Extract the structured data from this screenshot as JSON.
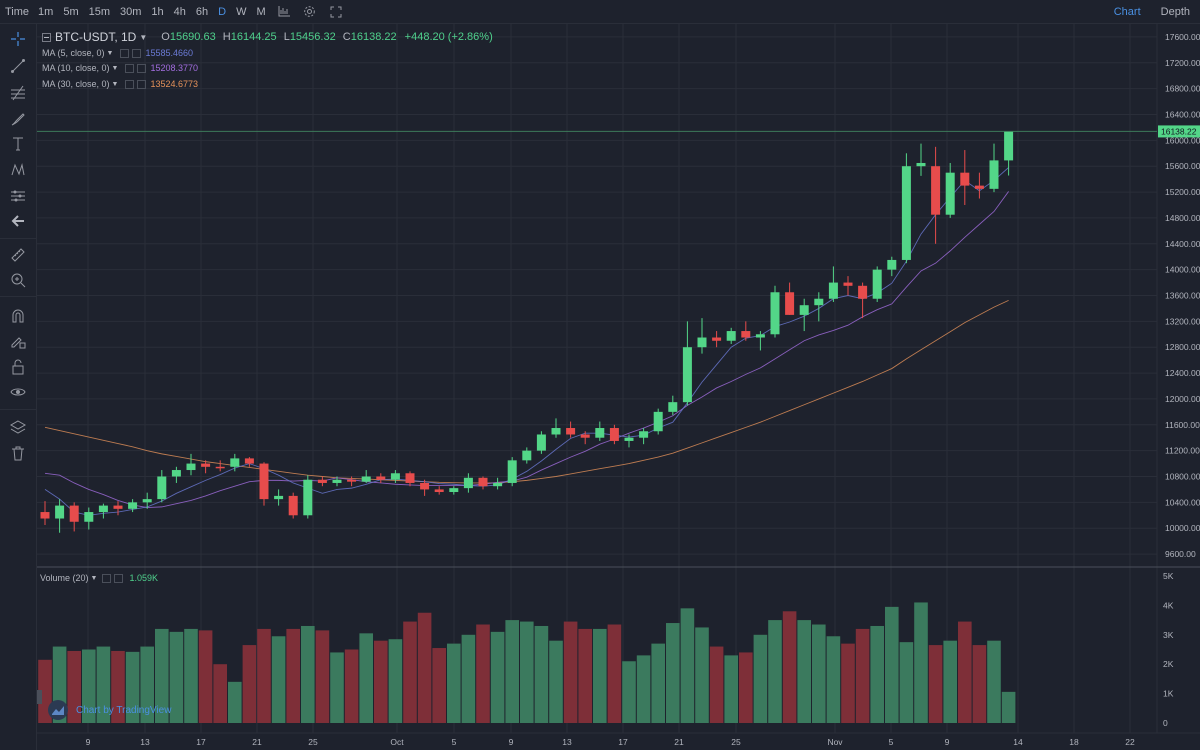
{
  "topbar": {
    "time_label": "Time",
    "intervals": [
      "1m",
      "5m",
      "15m",
      "30m",
      "1h",
      "4h",
      "6h",
      "D",
      "W",
      "M"
    ],
    "active_interval": "D",
    "tabs": [
      "Chart",
      "Depth"
    ],
    "active_tab": "Chart"
  },
  "toolbar_icons": [
    "crosshair-icon",
    "trend-line-icon",
    "fib-icon",
    "brush-icon",
    "text-icon",
    "pattern-icon",
    "prediction-icon",
    "back-arrow-icon",
    "ruler-icon",
    "zoom-icon",
    "magnet-icon",
    "lock-drawing-icon",
    "unlock-icon",
    "eye-icon",
    "layers-icon",
    "trash-icon"
  ],
  "legend": {
    "symbol": "BTC-USDT, 1D",
    "open_label": "O",
    "open": "15690.63",
    "high_label": "H",
    "high": "16144.25",
    "low_label": "L",
    "low": "15456.32",
    "close_label": "C",
    "close": "16138.22",
    "change": "+448.20 (+2.86%)",
    "mas": [
      {
        "label": "MA (5, close, 0)",
        "value": "15585.4660",
        "color": "#6b7bd6"
      },
      {
        "label": "MA (10, close, 0)",
        "value": "15208.3770",
        "color": "#a36ee0"
      },
      {
        "label": "MA (30, close, 0)",
        "value": "13524.6773",
        "color": "#e5925a"
      }
    ]
  },
  "volume_legend": {
    "label": "Volume (20)",
    "value": "1.059K"
  },
  "watermark": "Chart by TradingView",
  "colors": {
    "up": "#53d688",
    "down": "#e74c4c",
    "vol_up": "#3b7a5e",
    "vol_down": "#7e2f38",
    "bg": "#1e222d",
    "grid": "#2a2e39",
    "last_price": "#53d688"
  },
  "chart_data": {
    "type": "candlestick",
    "price_axis": {
      "ticks": [
        "17600.00",
        "17200.00",
        "16800.00",
        "16400.00",
        "16000.00",
        "15600.00",
        "15200.00",
        "14800.00",
        "14400.00",
        "14000.00",
        "13600.00",
        "13200.00",
        "12800.00",
        "12400.00",
        "12000.00",
        "11600.00",
        "11200.00",
        "10800.00",
        "10400.00",
        "10000.00",
        "9600.00"
      ],
      "last_price": "16138.22",
      "range": [
        9400,
        17800
      ]
    },
    "volume_axis": {
      "ticks": [
        "5K",
        "4K",
        "3K",
        "2K",
        "1K",
        "0"
      ],
      "range": [
        0,
        5000
      ]
    },
    "time_axis": {
      "ticks": [
        "9",
        "13",
        "17",
        "21",
        "25",
        "Oct",
        "5",
        "9",
        "13",
        "17",
        "21",
        "25",
        "Nov",
        "5",
        "9",
        "14",
        "18",
        "22"
      ]
    },
    "candles": [
      {
        "o": 10250,
        "h": 10420,
        "l": 10050,
        "c": 10150,
        "v": 2150
      },
      {
        "o": 10150,
        "h": 10450,
        "l": 9930,
        "c": 10350,
        "v": 2600
      },
      {
        "o": 10350,
        "h": 10400,
        "l": 9950,
        "c": 10100,
        "v": 2450
      },
      {
        "o": 10100,
        "h": 10320,
        "l": 9980,
        "c": 10250,
        "v": 2500
      },
      {
        "o": 10250,
        "h": 10380,
        "l": 10150,
        "c": 10350,
        "v": 2600
      },
      {
        "o": 10350,
        "h": 10420,
        "l": 10200,
        "c": 10300,
        "v": 2450
      },
      {
        "o": 10300,
        "h": 10450,
        "l": 10250,
        "c": 10400,
        "v": 2420
      },
      {
        "o": 10400,
        "h": 10550,
        "l": 10300,
        "c": 10450,
        "v": 2600
      },
      {
        "o": 10450,
        "h": 10900,
        "l": 10400,
        "c": 10800,
        "v": 3200
      },
      {
        "o": 10800,
        "h": 10950,
        "l": 10700,
        "c": 10900,
        "v": 3100
      },
      {
        "o": 10900,
        "h": 11150,
        "l": 10820,
        "c": 11000,
        "v": 3200
      },
      {
        "o": 11000,
        "h": 11050,
        "l": 10850,
        "c": 10950,
        "v": 3150
      },
      {
        "o": 10950,
        "h": 11050,
        "l": 10880,
        "c": 10940,
        "v": 2000
      },
      {
        "o": 10950,
        "h": 11150,
        "l": 10880,
        "c": 11080,
        "v": 1400
      },
      {
        "o": 11080,
        "h": 11100,
        "l": 10950,
        "c": 11000,
        "v": 2650
      },
      {
        "o": 11000,
        "h": 11020,
        "l": 10350,
        "c": 10450,
        "v": 3200
      },
      {
        "o": 10450,
        "h": 10600,
        "l": 10350,
        "c": 10500,
        "v": 2950
      },
      {
        "o": 10500,
        "h": 10550,
        "l": 10150,
        "c": 10200,
        "v": 3200
      },
      {
        "o": 10200,
        "h": 10820,
        "l": 10150,
        "c": 10750,
        "v": 3300
      },
      {
        "o": 10750,
        "h": 10800,
        "l": 10650,
        "c": 10700,
        "v": 3150
      },
      {
        "o": 10700,
        "h": 10800,
        "l": 10650,
        "c": 10750,
        "v": 2400
      },
      {
        "o": 10750,
        "h": 10800,
        "l": 10650,
        "c": 10720,
        "v": 2500
      },
      {
        "o": 10720,
        "h": 10900,
        "l": 10700,
        "c": 10800,
        "v": 3050
      },
      {
        "o": 10800,
        "h": 10850,
        "l": 10700,
        "c": 10750,
        "v": 2800
      },
      {
        "o": 10750,
        "h": 10900,
        "l": 10700,
        "c": 10850,
        "v": 2850
      },
      {
        "o": 10850,
        "h": 10880,
        "l": 10650,
        "c": 10700,
        "v": 3450
      },
      {
        "o": 10700,
        "h": 10750,
        "l": 10500,
        "c": 10600,
        "v": 3750
      },
      {
        "o": 10600,
        "h": 10650,
        "l": 10520,
        "c": 10560,
        "v": 2550
      },
      {
        "o": 10560,
        "h": 10650,
        "l": 10520,
        "c": 10620,
        "v": 2700
      },
      {
        "o": 10620,
        "h": 10850,
        "l": 10550,
        "c": 10780,
        "v": 3000
      },
      {
        "o": 10780,
        "h": 10800,
        "l": 10600,
        "c": 10650,
        "v": 3350
      },
      {
        "o": 10650,
        "h": 10780,
        "l": 10600,
        "c": 10700,
        "v": 3100
      },
      {
        "o": 10700,
        "h": 11100,
        "l": 10650,
        "c": 11050,
        "v": 3500
      },
      {
        "o": 11050,
        "h": 11250,
        "l": 11000,
        "c": 11200,
        "v": 3450
      },
      {
        "o": 11200,
        "h": 11500,
        "l": 11150,
        "c": 11450,
        "v": 3300
      },
      {
        "o": 11450,
        "h": 11700,
        "l": 11400,
        "c": 11550,
        "v": 2800
      },
      {
        "o": 11550,
        "h": 11650,
        "l": 11400,
        "c": 11450,
        "v": 3450
      },
      {
        "o": 11450,
        "h": 11500,
        "l": 11300,
        "c": 11400,
        "v": 3200
      },
      {
        "o": 11400,
        "h": 11650,
        "l": 11350,
        "c": 11550,
        "v": 3200
      },
      {
        "o": 11550,
        "h": 11600,
        "l": 11300,
        "c": 11350,
        "v": 3350
      },
      {
        "o": 11350,
        "h": 11450,
        "l": 11250,
        "c": 11400,
        "v": 2100
      },
      {
        "o": 11400,
        "h": 11550,
        "l": 11300,
        "c": 11500,
        "v": 2300
      },
      {
        "o": 11500,
        "h": 11850,
        "l": 11450,
        "c": 11800,
        "v": 2700
      },
      {
        "o": 11800,
        "h": 12050,
        "l": 11750,
        "c": 11950,
        "v": 3400
      },
      {
        "o": 11950,
        "h": 13200,
        "l": 11900,
        "c": 12800,
        "v": 3900
      },
      {
        "o": 12800,
        "h": 13250,
        "l": 12700,
        "c": 12950,
        "v": 3250
      },
      {
        "o": 12950,
        "h": 13050,
        "l": 12800,
        "c": 12900,
        "v": 2600
      },
      {
        "o": 12900,
        "h": 13100,
        "l": 12850,
        "c": 13050,
        "v": 2300
      },
      {
        "o": 13050,
        "h": 13200,
        "l": 12900,
        "c": 12950,
        "v": 2400
      },
      {
        "o": 12950,
        "h": 13050,
        "l": 12750,
        "c": 13000,
        "v": 3000
      },
      {
        "o": 13000,
        "h": 13750,
        "l": 12950,
        "c": 13650,
        "v": 3500
      },
      {
        "o": 13650,
        "h": 13800,
        "l": 13300,
        "c": 13300,
        "v": 3800
      },
      {
        "o": 13300,
        "h": 13550,
        "l": 13050,
        "c": 13450,
        "v": 3500
      },
      {
        "o": 13450,
        "h": 13650,
        "l": 13200,
        "c": 13550,
        "v": 3350
      },
      {
        "o": 13550,
        "h": 14050,
        "l": 13500,
        "c": 13800,
        "v": 2950
      },
      {
        "o": 13800,
        "h": 13900,
        "l": 13600,
        "c": 13750,
        "v": 2700
      },
      {
        "o": 13750,
        "h": 13800,
        "l": 13250,
        "c": 13550,
        "v": 3200
      },
      {
        "o": 13550,
        "h": 14050,
        "l": 13500,
        "c": 14000,
        "v": 3300
      },
      {
        "o": 14000,
        "h": 14200,
        "l": 13900,
        "c": 14150,
        "v": 3950
      },
      {
        "o": 14150,
        "h": 15800,
        "l": 14100,
        "c": 15600,
        "v": 2750
      },
      {
        "o": 15600,
        "h": 15950,
        "l": 15450,
        "c": 15650,
        "v": 4100
      },
      {
        "o": 15600,
        "h": 15900,
        "l": 14400,
        "c": 14850,
        "v": 2650
      },
      {
        "o": 14850,
        "h": 15650,
        "l": 14800,
        "c": 15500,
        "v": 2800
      },
      {
        "o": 15500,
        "h": 15850,
        "l": 15000,
        "c": 15300,
        "v": 3450
      },
      {
        "o": 15300,
        "h": 15500,
        "l": 15100,
        "c": 15250,
        "v": 2650
      },
      {
        "o": 15250,
        "h": 15950,
        "l": 15200,
        "c": 15690,
        "v": 2800
      },
      {
        "o": 15690,
        "h": 16144,
        "l": 15456,
        "c": 16138,
        "v": 1059
      }
    ],
    "ma5": [
      10600,
      10450,
      10250,
      10200,
      10230,
      10250,
      10290,
      10330,
      10420,
      10540,
      10640,
      10740,
      10830,
      10930,
      11000,
      10920,
      10820,
      10700,
      10620,
      10540,
      10600,
      10620,
      10680,
      10750,
      10760,
      10740,
      10720,
      10690,
      10680,
      10660,
      10650,
      10670,
      10760,
      10880,
      11040,
      11220,
      11390,
      11470,
      11470,
      11440,
      11410,
      11440,
      11550,
      11640,
      11940,
      12260,
      12530,
      12800,
      12940,
      12980,
      13120,
      13190,
      13280,
      13400,
      13550,
      13600,
      13550,
      13640,
      13790,
      14130,
      14550,
      14850,
      15120,
      15380,
      15220,
      15380,
      15580
    ],
    "ma10": [
      10850,
      10820,
      10700,
      10600,
      10520,
      10430,
      10360,
      10320,
      10330,
      10380,
      10430,
      10500,
      10580,
      10650,
      10720,
      10740,
      10740,
      10730,
      10740,
      10730,
      10780,
      10750,
      10720,
      10700,
      10680,
      10670,
      10660,
      10660,
      10660,
      10660,
      10680,
      10710,
      10730,
      10790,
      10900,
      11000,
      11100,
      11190,
      11300,
      11380,
      11470,
      11550,
      11640,
      11740,
      11900,
      12030,
      12170,
      12270,
      12380,
      12480,
      12620,
      12760,
      12900,
      12990,
      13060,
      13140,
      13270,
      13380,
      13470,
      13730,
      13980,
      14100,
      14290,
      14500,
      14700,
      14900,
      15210
    ],
    "ma30": [
      11560,
      11510,
      11460,
      11410,
      11360,
      11310,
      11260,
      11200,
      11150,
      11110,
      11070,
      11030,
      11000,
      10970,
      10940,
      10910,
      10880,
      10850,
      10820,
      10800,
      10780,
      10770,
      10760,
      10750,
      10740,
      10730,
      10720,
      10710,
      10705,
      10700,
      10700,
      10700,
      10720,
      10740,
      10770,
      10800,
      10840,
      10880,
      10920,
      10960,
      11000,
      11050,
      11100,
      11160,
      11240,
      11320,
      11400,
      11480,
      11560,
      11640,
      11730,
      11820,
      11910,
      12000,
      12090,
      12180,
      12270,
      12370,
      12470,
      12620,
      12760,
      12900,
      13040,
      13180,
      13300,
      13420,
      13525
    ]
  }
}
